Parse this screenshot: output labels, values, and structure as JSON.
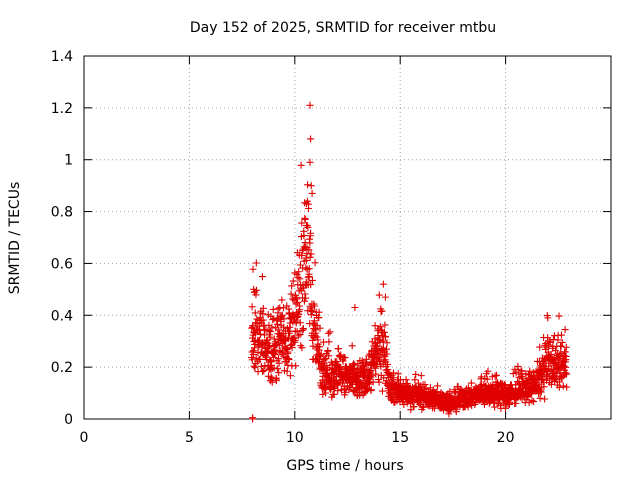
{
  "chart_data": {
    "type": "scatter",
    "title": "Day 152 of 2025, SRMTID for receiver mtbu",
    "xlabel": "GPS time / hours",
    "ylabel": "SRMTID / TECUs",
    "xlim": [
      0,
      25
    ],
    "ylim": [
      0,
      1.4
    ],
    "xticks": [
      "0",
      "5",
      "10",
      "15",
      "20"
    ],
    "xtick_values": [
      0,
      5,
      10,
      15,
      20
    ],
    "yticks": [
      "0",
      "0.2",
      "0.4",
      "0.6",
      "0.8",
      "1",
      "1.2",
      "1.4"
    ],
    "ytick_values": [
      0,
      0.2,
      0.4,
      0.6,
      0.8,
      1.0,
      1.2,
      1.4
    ],
    "grid": true,
    "marker": "+",
    "marker_color": "#e00000",
    "series": [
      {
        "name": "SRMTID",
        "x_start": 7.95,
        "x_end": 22.9,
        "x_step": 0.0083,
        "profile": [
          [
            7.95,
            0.3
          ],
          [
            8.3,
            0.33
          ],
          [
            8.6,
            0.26
          ],
          [
            9.0,
            0.27
          ],
          [
            9.4,
            0.32
          ],
          [
            9.8,
            0.3
          ],
          [
            10.1,
            0.4
          ],
          [
            10.5,
            0.65
          ],
          [
            10.7,
            0.6
          ],
          [
            10.9,
            0.35
          ],
          [
            11.3,
            0.2
          ],
          [
            11.8,
            0.17
          ],
          [
            12.5,
            0.16
          ],
          [
            13.0,
            0.14
          ],
          [
            13.5,
            0.17
          ],
          [
            13.9,
            0.25
          ],
          [
            14.2,
            0.3
          ],
          [
            14.5,
            0.13
          ],
          [
            15.0,
            0.1
          ],
          [
            16.0,
            0.09
          ],
          [
            17.0,
            0.07
          ],
          [
            17.5,
            0.06
          ],
          [
            18.0,
            0.08
          ],
          [
            19.0,
            0.1
          ],
          [
            20.0,
            0.09
          ],
          [
            21.0,
            0.12
          ],
          [
            21.5,
            0.13
          ],
          [
            22.0,
            0.22
          ],
          [
            22.5,
            0.21
          ],
          [
            22.9,
            0.2
          ]
        ],
        "outliers": [
          [
            8.0,
            0.0
          ],
          [
            8.0,
            0.005
          ],
          [
            10.72,
            1.21
          ],
          [
            10.75,
            1.08
          ],
          [
            10.72,
            0.99
          ],
          [
            10.78,
            0.9
          ],
          [
            10.82,
            0.87
          ],
          [
            10.55,
            0.83
          ],
          [
            10.6,
            0.84
          ],
          [
            10.5,
            0.77
          ],
          [
            14.2,
            0.52
          ],
          [
            14.3,
            0.47
          ],
          [
            22.0,
            0.39
          ],
          [
            12.85,
            0.43
          ],
          [
            8.05,
            0.5
          ],
          [
            8.1,
            0.49
          ]
        ]
      }
    ]
  }
}
